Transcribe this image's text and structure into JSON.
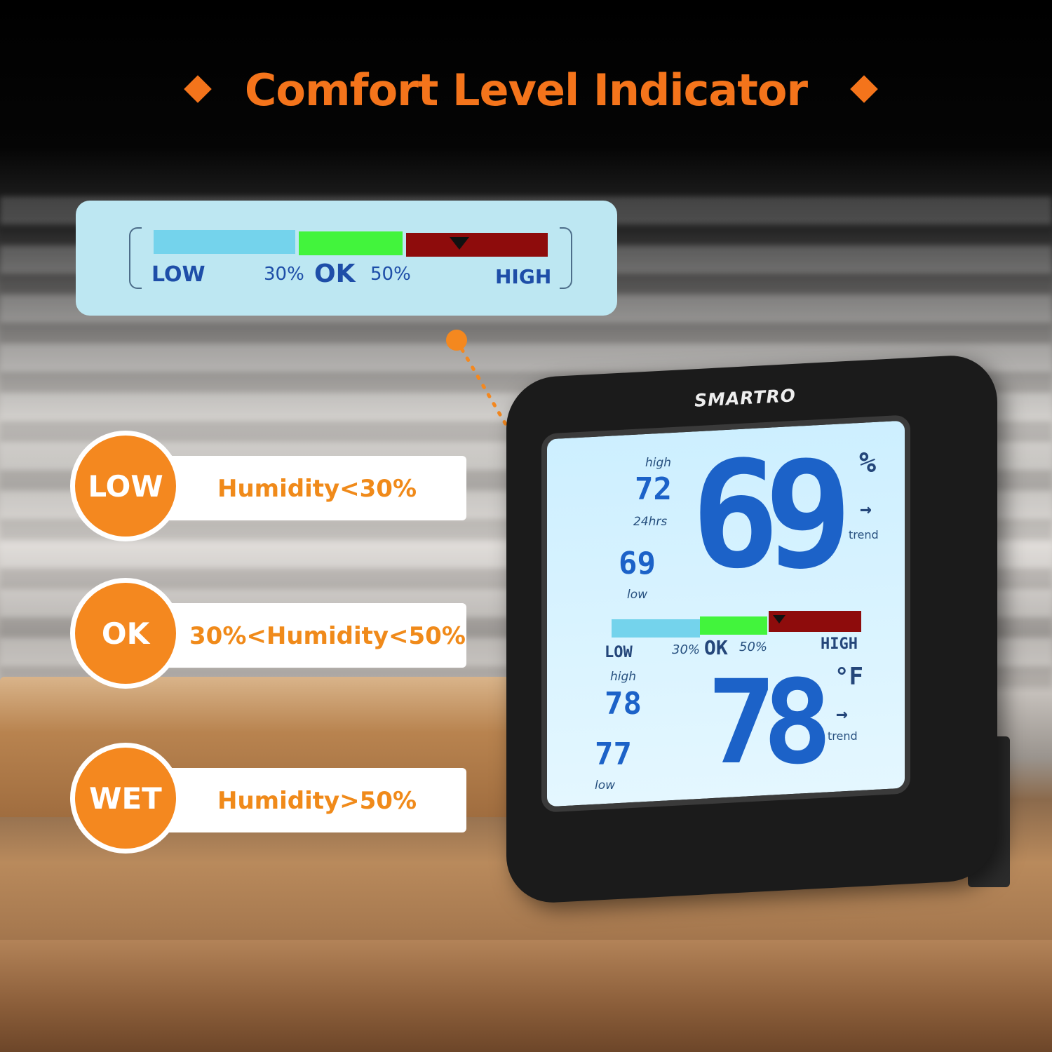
{
  "title": "Comfort Level Indicator",
  "colors": {
    "accent": "#f4741b",
    "low": "#74d3ec",
    "ok": "#42f43c",
    "high": "#8e0c0c",
    "lcd_digits": "#1c62c8"
  },
  "comfort_scale": {
    "low": "LOW",
    "p30": "30%",
    "ok": "OK",
    "p50": "50%",
    "high": "HIGH"
  },
  "levels": [
    {
      "badge": "LOW",
      "description": "Humidity<30%"
    },
    {
      "badge": "OK",
      "description": "30%<Humidity<50%"
    },
    {
      "badge": "WET",
      "description": "Humidity>50%"
    }
  ],
  "device": {
    "brand": "SMARTRO",
    "humidity": {
      "value": "69",
      "unit": "%",
      "trend": "trend",
      "trend_icon": "arrow-right",
      "high_label": "high",
      "high": "72",
      "period": "24hrs",
      "low": "69",
      "low_label": "low"
    },
    "temperature": {
      "value": "78",
      "unit": "°F",
      "trend": "trend",
      "trend_icon": "arrow-right",
      "high_label": "high",
      "high": "78",
      "low": "77",
      "low_label": "low"
    },
    "scale": {
      "low": "LOW",
      "p30": "30%",
      "ok": "OK",
      "p50": "50%",
      "high": "HIGH"
    }
  }
}
